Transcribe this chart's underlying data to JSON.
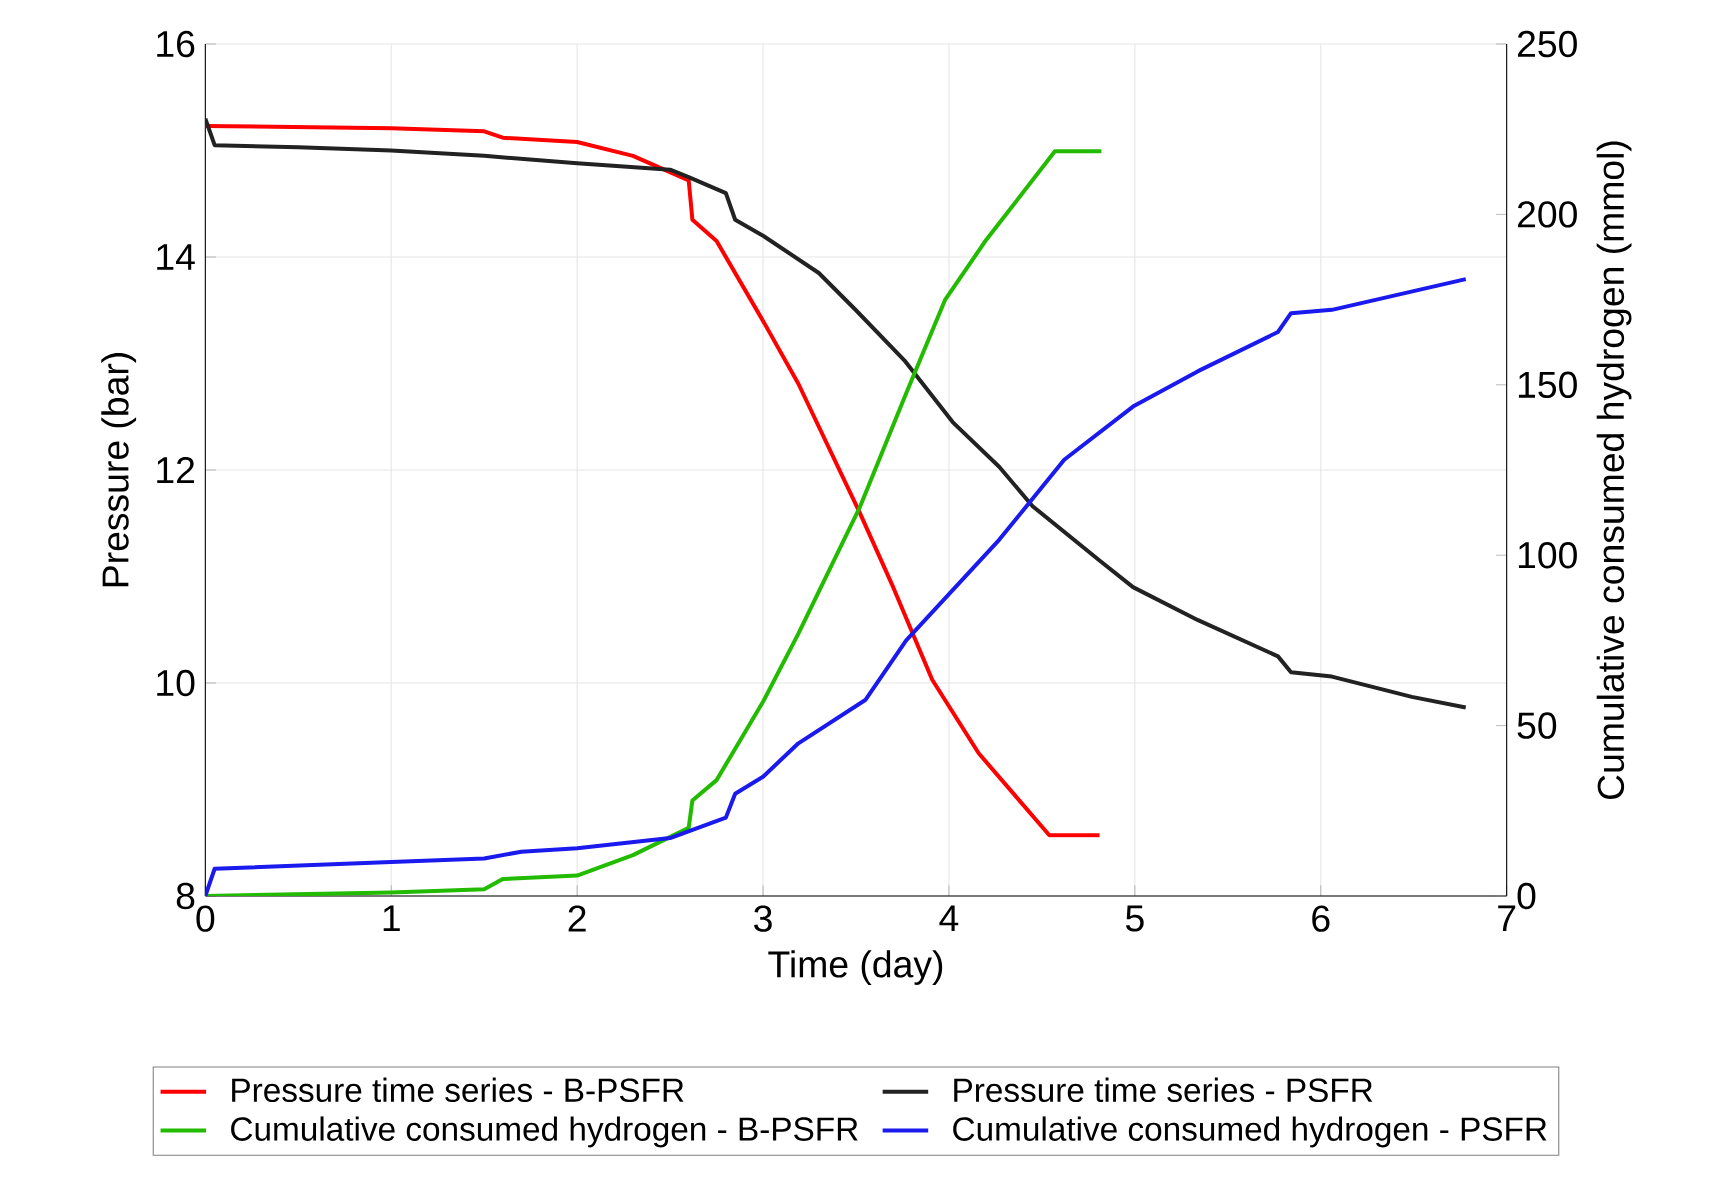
{
  "chart_data": {
    "type": "line",
    "xlabel": "Time (day)",
    "ylabel": "Pressure (bar)",
    "y2label": "Cumulative consumed  hydrogen (mmol)",
    "xlim": [
      0,
      7
    ],
    "xticks": [
      0,
      1,
      2,
      3,
      4,
      5,
      6,
      7
    ],
    "ylim": [
      8,
      16
    ],
    "yticks": [
      8,
      10,
      12,
      14,
      16
    ],
    "y2lim": [
      0,
      250
    ],
    "y2ticks": [
      0,
      50,
      100,
      150,
      200,
      250
    ],
    "grid": true,
    "legend": "bottom",
    "marker": "none",
    "line_style": "solid",
    "series": [
      {
        "name": "Pressure time series - B-PSFR",
        "color": "#ff0000",
        "x": [
          0,
          0.5,
          1.0,
          1.5,
          1.6,
          2.0,
          2.3,
          2.6,
          2.62,
          2.75,
          3.0,
          3.19,
          3.52,
          3.7,
          3.91,
          4.16,
          4.54,
          4.81
        ],
        "values": [
          15.23,
          15.22,
          15.21,
          15.18,
          15.12,
          15.08,
          14.95,
          14.72,
          14.35,
          14.15,
          13.4,
          12.81,
          11.6,
          10.9,
          10.03,
          9.34,
          8.57,
          8.57
        ]
      },
      {
        "name": "Pressure time series - PSFR",
        "color": "#222222",
        "x": [
          0,
          0.05,
          0.5,
          1.0,
          1.5,
          2.0,
          2.5,
          2.6,
          2.8,
          2.85,
          3.0,
          3.3,
          3.5,
          3.76,
          4.02,
          4.27,
          4.45,
          4.81,
          4.99,
          5.34,
          5.77,
          5.84,
          6.06,
          6.49,
          6.78
        ],
        "values": [
          15.3,
          15.05,
          15.03,
          15.0,
          14.95,
          14.88,
          14.82,
          14.75,
          14.6,
          14.35,
          14.2,
          13.85,
          13.5,
          13.03,
          12.45,
          12.03,
          11.66,
          11.15,
          10.9,
          10.59,
          10.25,
          10.1,
          10.06,
          9.87,
          9.77
        ]
      },
      {
        "name": "Cumulative consumed hydrogen - B-PSFR",
        "color": "#22bb00",
        "axis": "y2",
        "x": [
          0,
          0.5,
          1.0,
          1.5,
          1.6,
          2.0,
          2.3,
          2.6,
          2.62,
          2.75,
          3.0,
          3.19,
          3.52,
          3.77,
          3.98,
          4.2,
          4.57,
          4.82
        ],
        "values": [
          0,
          0.5,
          1,
          2,
          5,
          6,
          12,
          20,
          28,
          34,
          57,
          77,
          114,
          147.5,
          175,
          192.5,
          218.5,
          218.5
        ]
      },
      {
        "name": "Cumulative consumed hydrogen - PSFR",
        "color": "#1a1aee",
        "axis": "y2",
        "x": [
          0,
          0.05,
          1.0,
          1.5,
          1.7,
          2.0,
          2.5,
          2.8,
          2.85,
          3.0,
          3.19,
          3.55,
          3.77,
          4.27,
          4.62,
          4.99,
          5.34,
          5.77,
          5.84,
          6.06,
          6.78
        ],
        "values": [
          0,
          8,
          10,
          11,
          13,
          14,
          17,
          23,
          30,
          35,
          44.8,
          57.5,
          75,
          104.5,
          128,
          143.6,
          154,
          165.5,
          171,
          172,
          181
        ]
      }
    ]
  }
}
